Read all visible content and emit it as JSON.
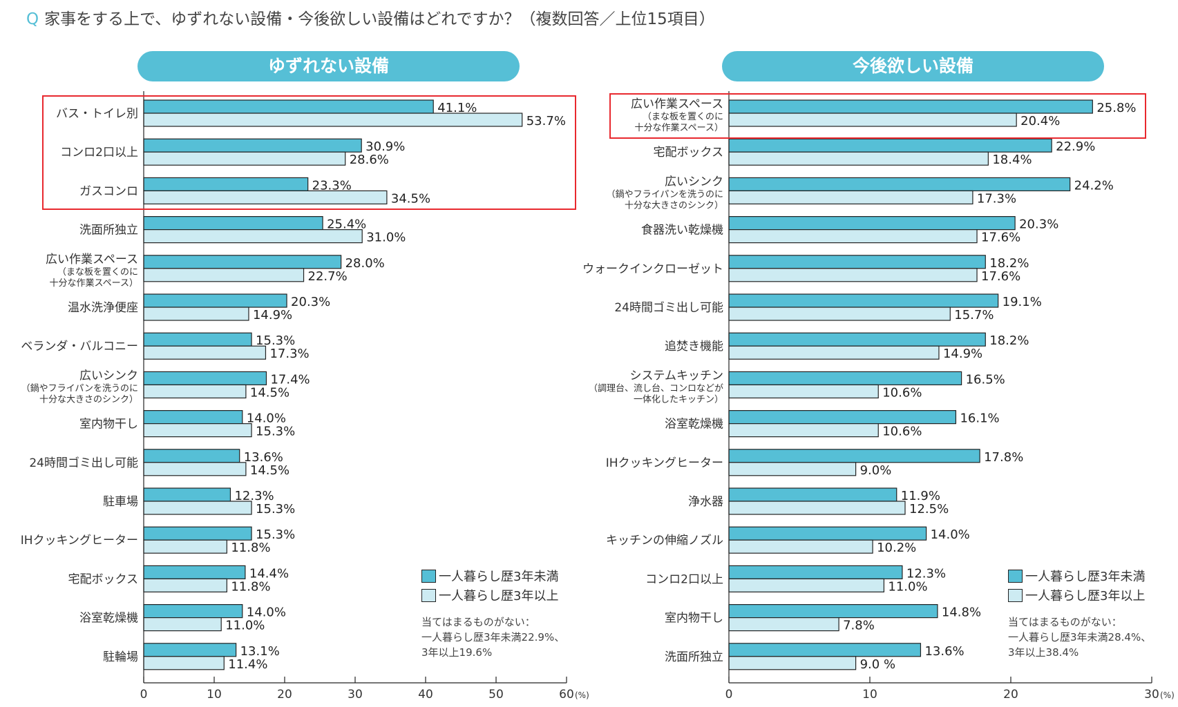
{
  "title": {
    "q": "Q",
    "text": "家事をする上で、ゆずれない設備・今後欲しい設備はどれですか？（複数回答／上位15項目）"
  },
  "colors": {
    "series1": "#56bfd6",
    "series2": "#cdebf2",
    "header": "#56bfd6",
    "highlight": "#e8282e"
  },
  "chart_data": [
    {
      "type": "bar",
      "orientation": "horizontal",
      "title": "ゆずれない設備",
      "xlim": [
        0,
        60
      ],
      "xticks": [
        "0",
        "10",
        "20",
        "30",
        "40",
        "50",
        "60"
      ],
      "unit": "(%)",
      "highlighted_categories": [
        0,
        1,
        2
      ],
      "categories": [
        {
          "label": "バス・トイレ別"
        },
        {
          "label": "コンロ2口以上"
        },
        {
          "label": "ガスコンロ"
        },
        {
          "label": "洗面所独立"
        },
        {
          "label": "広い作業スペース",
          "sub": [
            "（まな板を置くのに",
            "十分な作業スペース）"
          ]
        },
        {
          "label": "温水洗浄便座"
        },
        {
          "label": "ベランダ・バルコニー"
        },
        {
          "label": "広いシンク",
          "sub": [
            "（鍋やフライパンを洗うのに",
            "十分な大きさのシンク）"
          ]
        },
        {
          "label": "室内物干し"
        },
        {
          "label": "24時間ゴミ出し可能"
        },
        {
          "label": "駐車場"
        },
        {
          "label": "IHクッキングヒーター"
        },
        {
          "label": "宅配ボックス"
        },
        {
          "label": "浴室乾燥機"
        },
        {
          "label": "駐輪場"
        }
      ],
      "series": [
        {
          "name": "一人暮らし歴3年未満",
          "values": [
            41.1,
            30.9,
            23.3,
            25.4,
            28.0,
            20.3,
            15.3,
            17.4,
            14.0,
            13.6,
            12.3,
            15.3,
            14.4,
            14.0,
            13.1
          ]
        },
        {
          "name": "一人暮らし歴3年以上",
          "values": [
            53.7,
            28.6,
            34.5,
            31.0,
            22.7,
            14.9,
            17.3,
            14.5,
            15.3,
            14.5,
            15.3,
            11.8,
            11.8,
            11.0,
            11.4
          ]
        }
      ],
      "value_labels": [
        [
          "41.1%",
          "30.9%",
          "23.3%",
          "25.4%",
          "28.0%",
          "20.3%",
          "15.3%",
          "17.4%",
          "14.0%",
          "13.6%",
          "12.3%",
          "15.3%",
          "14.4%",
          "14.0%",
          "13.1%"
        ],
        [
          "53.7%",
          "28.6%",
          "34.5%",
          "31.0%",
          "22.7%",
          "14.9%",
          "17.3%",
          "14.5%",
          "15.3%",
          "14.5%",
          "15.3%",
          "11.8%",
          "11.8%",
          "11.0%",
          "11.4%"
        ]
      ],
      "legend_position": "bottom-right",
      "note": [
        "当てはまるものがない：",
        "一人暮らし歴3年未満22.9%、",
        "3年以上19.6%"
      ]
    },
    {
      "type": "bar",
      "orientation": "horizontal",
      "title": "今後欲しい設備",
      "xlim": [
        0,
        30
      ],
      "xticks": [
        "0",
        "10",
        "20",
        "30"
      ],
      "unit": "(%)",
      "highlighted_categories": [
        0
      ],
      "categories": [
        {
          "label": "広い作業スペース",
          "sub": [
            "（まな板を置くのに",
            "十分な作業スペース）"
          ]
        },
        {
          "label": "宅配ボックス"
        },
        {
          "label": "広いシンク",
          "sub": [
            "（鍋やフライパンを洗うのに",
            "十分な大きさのシンク）"
          ]
        },
        {
          "label": "食器洗い乾燥機"
        },
        {
          "label": "ウォークインクローゼット"
        },
        {
          "label": "24時間ゴミ出し可能"
        },
        {
          "label": "追焚き機能"
        },
        {
          "label": "システムキッチン",
          "sub": [
            "（調理台、流し台、コンロなどが",
            "一体化したキッチン）"
          ]
        },
        {
          "label": "浴室乾燥機"
        },
        {
          "label": "IHクッキングヒーター"
        },
        {
          "label": "浄水器"
        },
        {
          "label": "キッチンの伸縮ノズル"
        },
        {
          "label": "コンロ2口以上"
        },
        {
          "label": "室内物干し"
        },
        {
          "label": "洗面所独立"
        }
      ],
      "series": [
        {
          "name": "一人暮らし歴3年未満",
          "values": [
            25.8,
            22.9,
            24.2,
            20.3,
            18.2,
            19.1,
            18.2,
            16.5,
            16.1,
            17.8,
            11.9,
            14.0,
            12.3,
            14.8,
            13.6
          ]
        },
        {
          "name": "一人暮らし歴3年以上",
          "values": [
            20.4,
            18.4,
            17.3,
            17.6,
            17.6,
            15.7,
            14.9,
            10.6,
            10.6,
            9.0,
            12.5,
            10.2,
            11.0,
            7.8,
            9.0
          ]
        }
      ],
      "value_labels": [
        [
          "25.8%",
          "22.9%",
          "24.2%",
          "20.3%",
          "18.2%",
          "19.1%",
          "18.2%",
          "16.5%",
          "16.1%",
          "17.8%",
          "11.9%",
          "14.0%",
          "12.3%",
          "14.8%",
          "13.6%"
        ],
        [
          "20.4%",
          "18.4%",
          "17.3%",
          "17.6%",
          "17.6%",
          "15.7%",
          "14.9%",
          "10.6%",
          "10.6%",
          "9.0%",
          "12.5%",
          "10.2%",
          "11.0%",
          "7.8%",
          "9.0 %"
        ]
      ],
      "legend_position": "bottom-right",
      "note": [
        "当てはまるものがない：",
        "一人暮らし歴3年未満28.4%、",
        "3年以上38.4%"
      ]
    }
  ]
}
